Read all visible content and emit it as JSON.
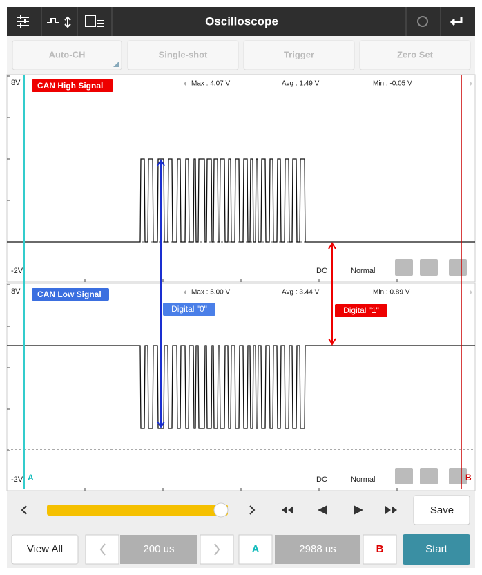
{
  "toolbar": {
    "title": "Oscilloscope"
  },
  "buttons": [
    "Auto-CH",
    "Single-shot",
    "Trigger",
    "Zero Set"
  ],
  "channels": [
    {
      "label": "CAN High Signal",
      "y_top": "8V",
      "y_bottom": "-2V",
      "max": "Max : 4.07 V",
      "avg": "Avg : 1.49 V",
      "min": "Min : -0.05 V",
      "coupling": "DC",
      "mode": "Normal"
    },
    {
      "label": "CAN Low Signal",
      "y_top": "8V",
      "y_bottom": "-2V",
      "max": "Max : 5.00 V",
      "avg": "Avg : 3.44 V",
      "min": "Min : 0.89 V",
      "coupling": "DC",
      "mode": "Normal"
    }
  ],
  "annotations": [
    "Digital \"0\"",
    "Digital \"1\""
  ],
  "cursors": [
    "A",
    "B"
  ],
  "controls": {
    "save": "Save",
    "view_all": "View All",
    "time_base": "200 us",
    "cursor_a": "A",
    "cursor_delta": "2988 us",
    "cursor_b": "B",
    "start": "Start"
  }
}
